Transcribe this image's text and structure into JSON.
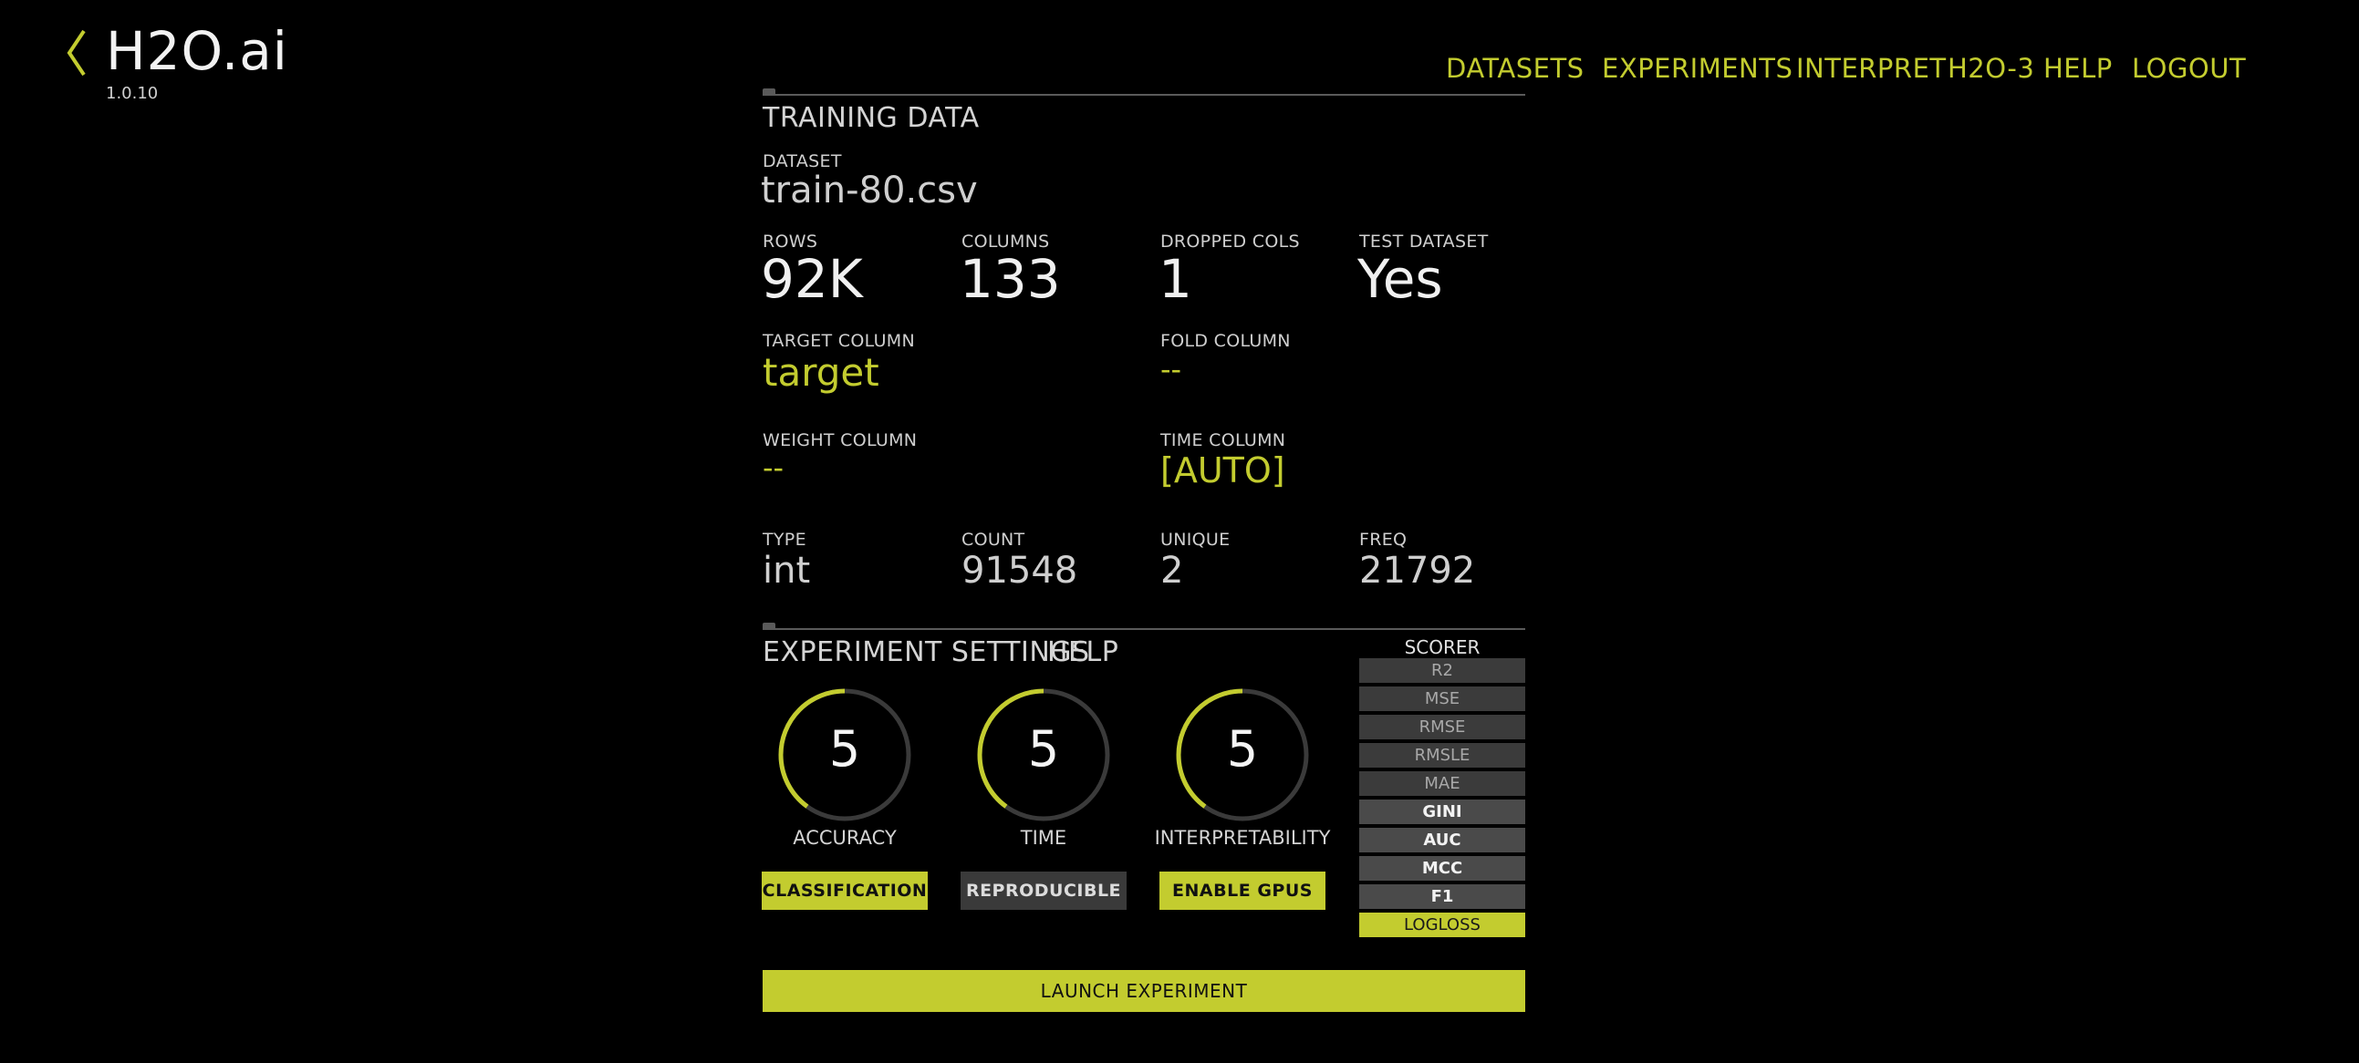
{
  "app": {
    "logo": "H2O.ai",
    "version": "1.0.10"
  },
  "nav": [
    "DATASETS",
    "EXPERIMENTS",
    "INTERPRET",
    "H2O-3",
    "HELP",
    "LOGOUT"
  ],
  "training": {
    "title": "TRAINING DATA",
    "dataset_label": "DATASET",
    "dataset": "train-80.csv",
    "rows_label": "ROWS",
    "rows": "92K",
    "columns_label": "COLUMNS",
    "columns": "133",
    "dropped_label": "DROPPED COLS",
    "dropped": "1",
    "test_label": "TEST DATASET",
    "test": "Yes",
    "target_label": "TARGET COLUMN",
    "target": "target",
    "fold_label": "FOLD COLUMN",
    "fold": "--",
    "weight_label": "WEIGHT COLUMN",
    "weight": "--",
    "time_label": "TIME COLUMN",
    "time": "[AUTO]",
    "type_label": "TYPE",
    "type": "int",
    "count_label": "COUNT",
    "count": "91548",
    "unique_label": "UNIQUE",
    "unique": "2",
    "freq_label": "FREQ",
    "freq": "21792"
  },
  "settings": {
    "title": "EXPERIMENT SETTINGS",
    "help": "HELP",
    "dials": [
      {
        "value": "5",
        "label": "ACCURACY",
        "fraction": 0.4
      },
      {
        "value": "5",
        "label": "TIME",
        "fraction": 0.4
      },
      {
        "value": "5",
        "label": "INTERPRETABILITY",
        "fraction": 0.4
      }
    ],
    "buttons": {
      "classification": "CLASSIFICATION",
      "reproducible": "REPRODUCIBLE",
      "gpus": "ENABLE GPUS"
    },
    "scorer_title": "SCORER",
    "scorers": [
      "R2",
      "MSE",
      "RMSE",
      "RMSLE",
      "MAE",
      "GINI",
      "AUC",
      "MCC",
      "F1",
      "LOGLOSS"
    ],
    "launch": "LAUNCH EXPERIMENT"
  },
  "colors": {
    "accent": "#c3cc2f",
    "background": "#000000",
    "muted": "#3b3b3b"
  }
}
